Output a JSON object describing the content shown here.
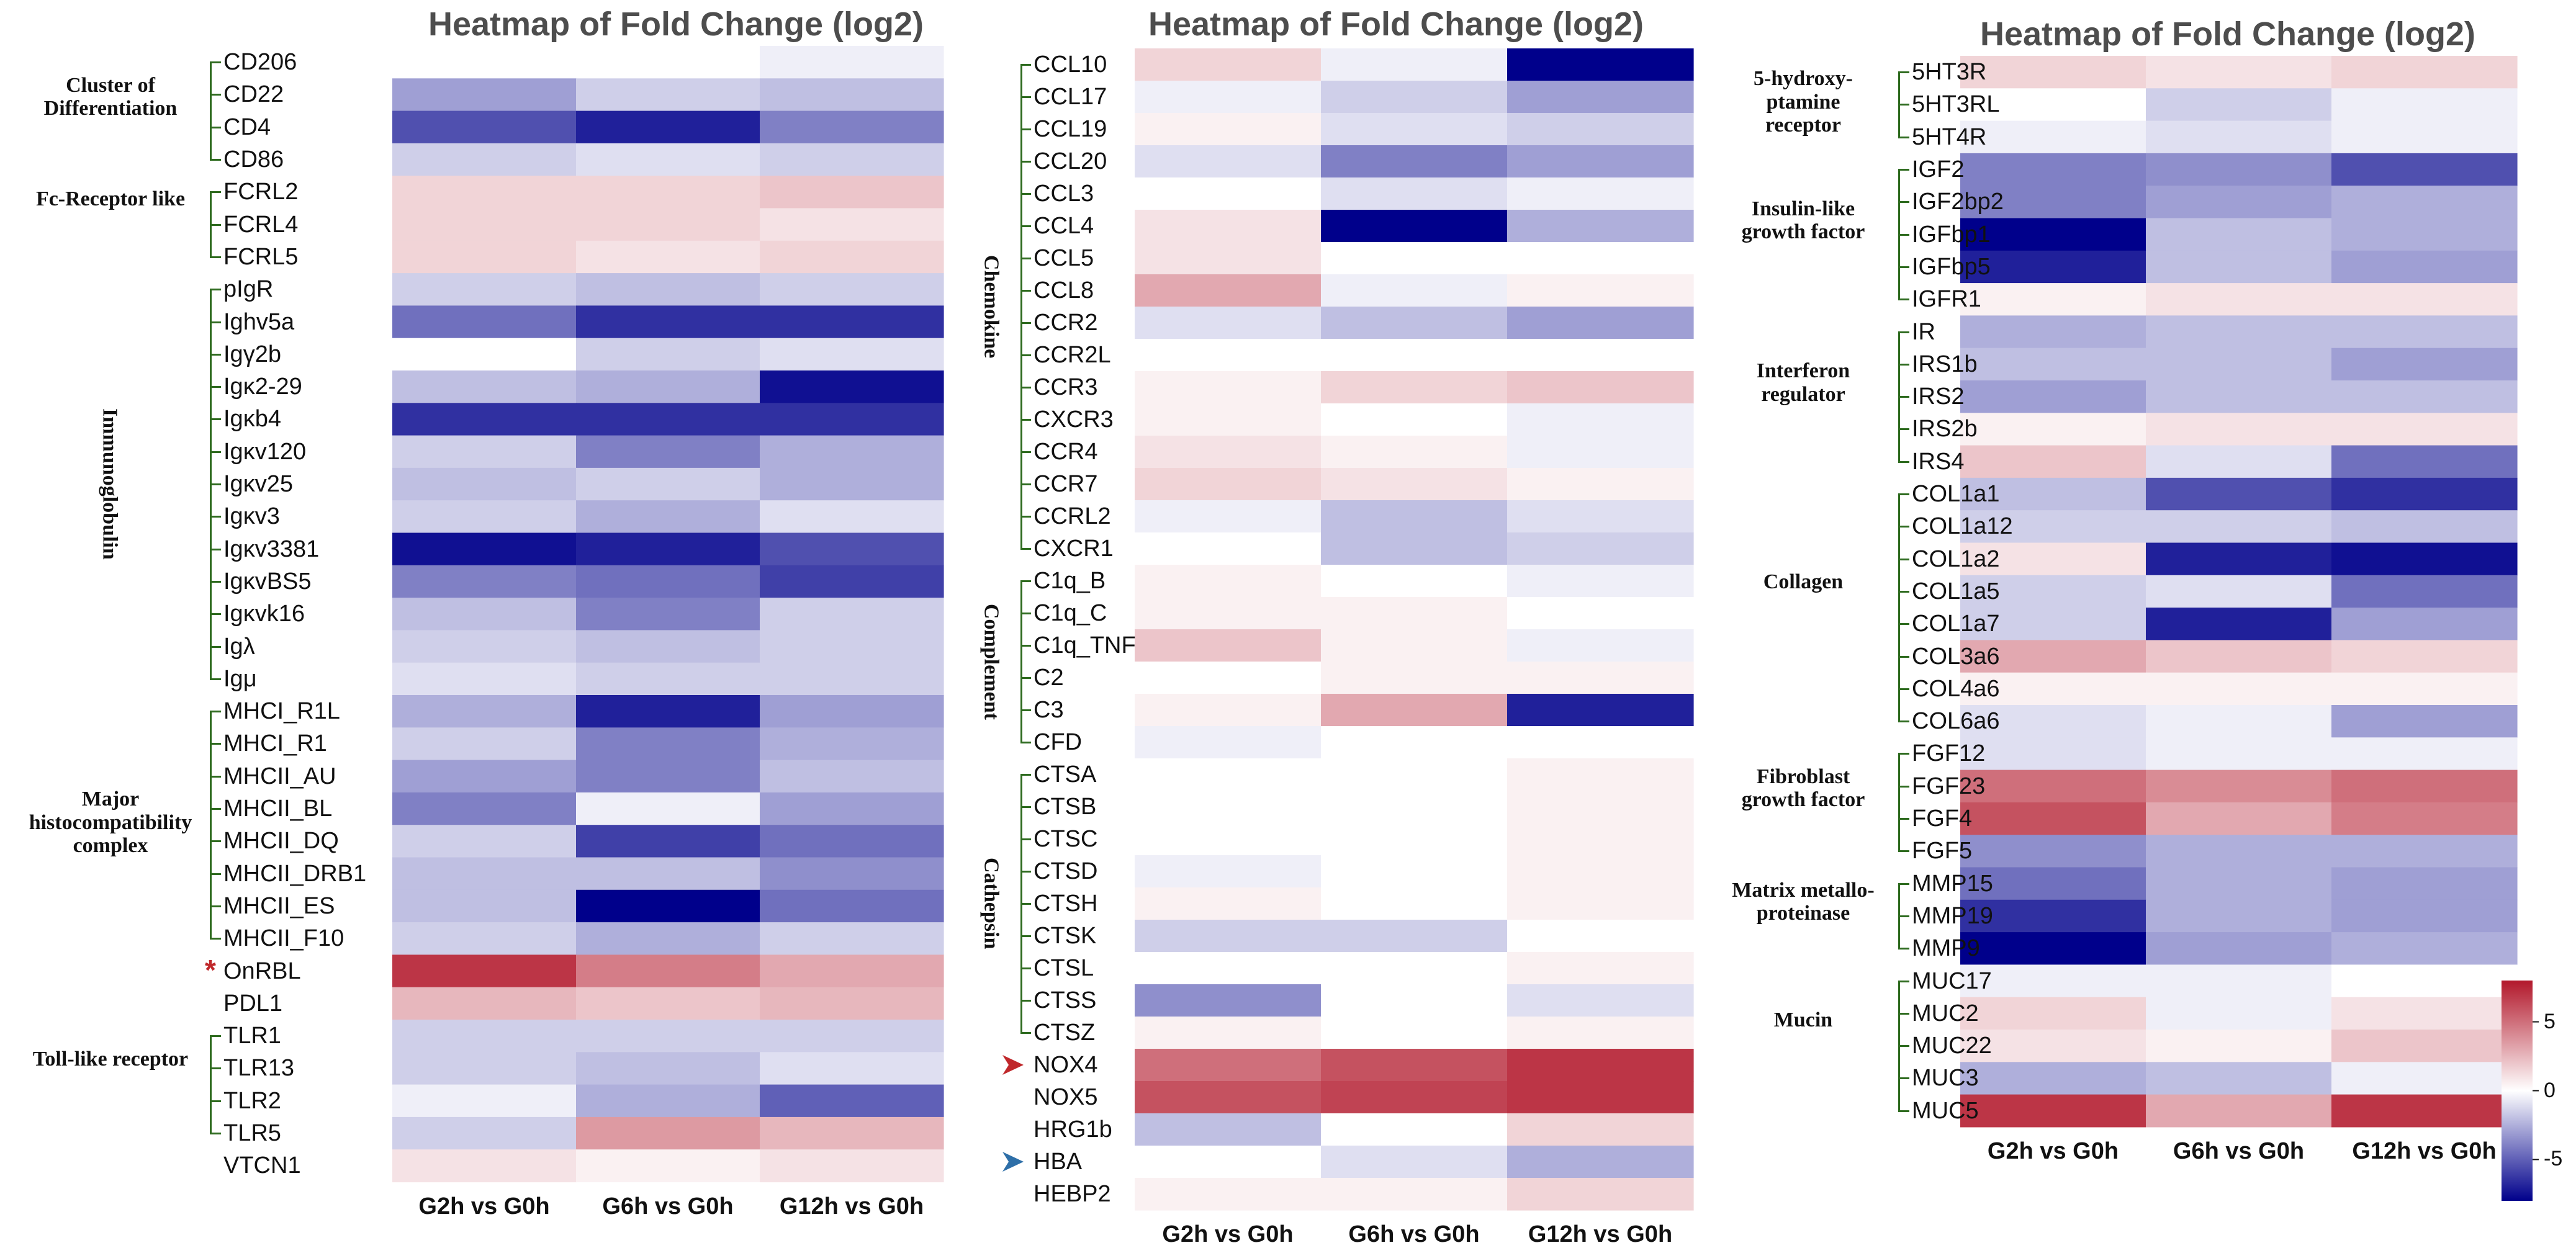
{
  "chart_data": [
    {
      "type": "heatmap",
      "title": "Heatmap of  Fold Change (log2)",
      "columns": [
        "G2h vs G0h",
        "G6h vs G0h",
        "G12h vs G0h"
      ],
      "groups": [
        {
          "name": "Cluster of Differentiation",
          "rows": [
            "CD206",
            "CD22",
            "CD4",
            "CD86"
          ]
        },
        {
          "name": "Fc-Receptor like",
          "rows": [
            "FCRL2",
            "FCRL4",
            "FCRL5"
          ]
        },
        {
          "name": "Immunoglobulin",
          "rows": [
            "pIgR",
            "Ighv5a",
            "Igγ2b",
            "Igκ2-29",
            "Igκb4",
            "Igκv120",
            "Igκv25",
            "Igκv3",
            "Igκv3381",
            "IgκvBS5",
            "Igκvk16",
            "Igλ",
            "Igμ"
          ]
        },
        {
          "name": "Major histocompatibility complex",
          "rows": [
            "MHCI_R1L",
            "MHCI_R1",
            "MHCII_AU",
            "MHCII_BL",
            "MHCII_DQ",
            "MHCII_DRB1",
            "MHCII_ES",
            "MHCII_F10"
          ]
        },
        {
          "name": "",
          "rows": [
            "OnRBL",
            "PDL1"
          ]
        },
        {
          "name": "Toll-like receptor",
          "rows": [
            "TLR1",
            "TLR13",
            "TLR2",
            "TLR5"
          ]
        },
        {
          "name": "",
          "rows": [
            "VTCN1"
          ]
        }
      ],
      "values": [
        [
          0,
          0,
          -0.5
        ],
        [
          -3,
          -1.5,
          -2
        ],
        [
          -5.5,
          -7,
          -4
        ],
        [
          -1.5,
          -1,
          -1.5
        ],
        [
          1.5,
          1.5,
          2
        ],
        [
          1.5,
          1.5,
          1
        ],
        [
          1.5,
          1,
          1.5
        ],
        [
          -1.5,
          -2,
          -1.5
        ],
        [
          -4.5,
          -6.5,
          -6.5
        ],
        [
          0,
          -1.5,
          -1
        ],
        [
          -2,
          -2.5,
          -7.5
        ],
        [
          -6.5,
          -6.5,
          -6.5
        ],
        [
          -1.5,
          -4,
          -2.5
        ],
        [
          -2,
          -1.5,
          -2.5
        ],
        [
          -1.5,
          -2.5,
          -1
        ],
        [
          -7.5,
          -7,
          -5.5
        ],
        [
          -4,
          -4.5,
          -6
        ],
        [
          -2,
          -4,
          -1.5
        ],
        [
          -1.5,
          -2,
          -1.5
        ],
        [
          -1,
          -1.5,
          -1.5
        ],
        [
          -2.5,
          -7,
          -3
        ],
        [
          -1.5,
          -4,
          -2.5
        ],
        [
          -3,
          -4,
          -2
        ],
        [
          -4,
          -0.5,
          -3
        ],
        [
          -1.5,
          -6,
          -4.5
        ],
        [
          -2,
          -2,
          -3.5
        ],
        [
          -2,
          -8,
          -4.5
        ],
        [
          -1.5,
          -2.5,
          -1.5
        ],
        [
          7,
          4.5,
          3
        ],
        [
          2.5,
          2,
          2.5
        ],
        [
          -1.5,
          -1.5,
          -1.5
        ],
        [
          -1.5,
          -2,
          -1
        ],
        [
          -0.5,
          -2.5,
          -5
        ],
        [
          -1.5,
          3.5,
          2.5
        ],
        [
          1,
          0.5,
          1
        ]
      ],
      "starred_row": "OnRBL",
      "vlim": [
        -8,
        8
      ]
    },
    {
      "type": "heatmap",
      "title": "Heatmap of  Fold Change (log2)",
      "columns": [
        "G2h vs G0h",
        "G6h vs G0h",
        "G12h vs G0h"
      ],
      "groups": [
        {
          "name": "Chemokine",
          "rows": [
            "CCL10",
            "CCL17",
            "CCL19",
            "CCL20",
            "CCL3",
            "CCL4",
            "CCL5",
            "CCL8",
            "CCR2",
            "CCR2L",
            "CCR3",
            "CXCR3",
            "CCR4",
            "CCR7",
            "CCRL2",
            "CXCR1"
          ]
        },
        {
          "name": "Complement",
          "rows": [
            "C1q_B",
            "C1q_C",
            "C1q_TNF",
            "C2",
            "C3",
            "CFD"
          ]
        },
        {
          "name": "Cathepsin",
          "rows": [
            "CTSA",
            "CTSB",
            "CTSC",
            "CTSD",
            "CTSH",
            "CTSK",
            "CTSL",
            "CTSS",
            "CTSZ"
          ]
        },
        {
          "name": "",
          "rows": [
            "NOX4",
            "NOX5"
          ]
        },
        {
          "name": "",
          "rows": [
            "HRG1b",
            "HBA",
            "HEBP2"
          ]
        }
      ],
      "values": [
        [
          1.5,
          -0.5,
          -8
        ],
        [
          -0.5,
          -1.5,
          -3
        ],
        [
          0.5,
          -1,
          -1.5
        ],
        [
          -1,
          -4,
          -3
        ],
        [
          0,
          -1,
          -0.5
        ],
        [
          1,
          -8,
          -2.5
        ],
        [
          1,
          0,
          0
        ],
        [
          3,
          -0.5,
          0.5
        ],
        [
          -1,
          -2,
          -3
        ],
        [
          0,
          0,
          0
        ],
        [
          0.5,
          1.5,
          2
        ],
        [
          0.5,
          0,
          -0.5
        ],
        [
          1,
          0.5,
          -0.5
        ],
        [
          1.5,
          1,
          0.5
        ],
        [
          -0.5,
          -2,
          -1
        ],
        [
          0,
          -2,
          -1.5
        ],
        [
          0.5,
          0,
          -0.5
        ],
        [
          0.5,
          0.5,
          0
        ],
        [
          2,
          0.5,
          -0.5
        ],
        [
          0,
          0.5,
          0.5
        ],
        [
          0.5,
          3,
          -7
        ],
        [
          -0.5,
          0,
          0
        ],
        [
          0,
          0,
          0.5
        ],
        [
          0,
          0,
          0.5
        ],
        [
          0,
          0,
          0.5
        ],
        [
          -0.5,
          0,
          0.5
        ],
        [
          0.5,
          0,
          0.5
        ],
        [
          -1.5,
          -1.5,
          0
        ],
        [
          0,
          0,
          0.5
        ],
        [
          -3.5,
          0,
          -1
        ],
        [
          0.5,
          0,
          0.5
        ],
        [
          5,
          6,
          7
        ],
        [
          6,
          6.5,
          7
        ],
        [
          -2,
          0,
          1.5
        ],
        [
          0,
          -1,
          -2.5
        ],
        [
          0.5,
          0.5,
          1.5
        ]
      ],
      "markers": [
        {
          "row": "NOX4",
          "color": "#c0282b"
        },
        {
          "row": "HBA",
          "color": "#2e6fa8"
        }
      ],
      "vlim": [
        -8,
        8
      ]
    },
    {
      "type": "heatmap",
      "title": "Heatmap of  Fold Change (log2)",
      "columns": [
        "G2h vs G0h",
        "G6h vs G0h",
        "G12h vs G0h"
      ],
      "groups": [
        {
          "name": "5-hydroxy-ptamine receptor",
          "rows": [
            "5HT3R",
            "5HT3RL",
            "5HT4R"
          ]
        },
        {
          "name": "Insulin-like growth factor",
          "rows": [
            "IGF2",
            "IGF2bp2",
            "IGFbp1",
            "IGFbp5",
            "IGFR1"
          ]
        },
        {
          "name": "Interferon regulator",
          "rows": [
            "IR",
            "IRS1b",
            "IRS2",
            "IRS2b",
            "IRS4"
          ]
        },
        {
          "name": "Collagen",
          "rows": [
            "COL1a1",
            "COL1a12",
            "COL1a2",
            "COL1a5",
            "COL1a7",
            "COL3a6",
            "COL4a6",
            "COL6a6"
          ]
        },
        {
          "name": "Fibroblast growth factor",
          "rows": [
            "FGF12",
            "FGF23",
            "FGF4",
            "FGF5"
          ]
        },
        {
          "name": "Matrix metallo-proteinase",
          "rows": [
            "MMP15",
            "MMP19",
            "MMP9"
          ]
        },
        {
          "name": "Mucin",
          "rows": [
            "MUC17",
            "MUC2",
            "MUC22",
            "MUC3",
            "MUC5"
          ]
        }
      ],
      "values": [
        [
          1.5,
          1,
          1.5
        ],
        [
          0,
          -1.5,
          -0.5
        ],
        [
          -0.5,
          -1,
          -0.5
        ],
        [
          -4,
          -3.5,
          -5.5
        ],
        [
          -4,
          -3,
          -2.5
        ],
        [
          -8,
          -2,
          -2.5
        ],
        [
          -7,
          -2,
          -3
        ],
        [
          0.5,
          1,
          1
        ],
        [
          -2.5,
          -2,
          -2
        ],
        [
          -2,
          -2,
          -3
        ],
        [
          -3,
          -2,
          -2
        ],
        [
          0.5,
          1,
          1
        ],
        [
          2,
          -1,
          -4.5
        ],
        [
          -2,
          -5.5,
          -6.5
        ],
        [
          -1.5,
          -1.5,
          -2
        ],
        [
          1,
          -7,
          -7.5
        ],
        [
          -1.5,
          -1,
          -4.5
        ],
        [
          -1.5,
          -7,
          -3
        ],
        [
          3,
          2,
          1.5
        ],
        [
          0.5,
          0.5,
          0.5
        ],
        [
          -1,
          -0.5,
          -3
        ],
        [
          -1,
          -0.5,
          -0.5
        ],
        [
          5,
          4,
          5
        ],
        [
          6,
          3,
          4.5
        ],
        [
          -3.5,
          -2.5,
          -2.5
        ],
        [
          -4.5,
          -2.5,
          -3
        ],
        [
          -6.5,
          -2.5,
          -3
        ],
        [
          -8,
          -3,
          -2.5
        ],
        [
          -0.5,
          -0.5,
          0
        ],
        [
          1.5,
          -0.5,
          1
        ],
        [
          1,
          0.5,
          2
        ],
        [
          -2.5,
          -2,
          -0.5
        ],
        [
          7,
          3,
          7
        ]
      ],
      "vlim": [
        -8,
        8
      ],
      "colorbar": {
        "ticks": [
          5,
          0,
          -5
        ],
        "tick_labels": [
          "5",
          "0",
          "-5"
        ],
        "low_color": "#00008b",
        "mid_color": "#ffffff",
        "high_color": "#b2182b"
      }
    }
  ]
}
